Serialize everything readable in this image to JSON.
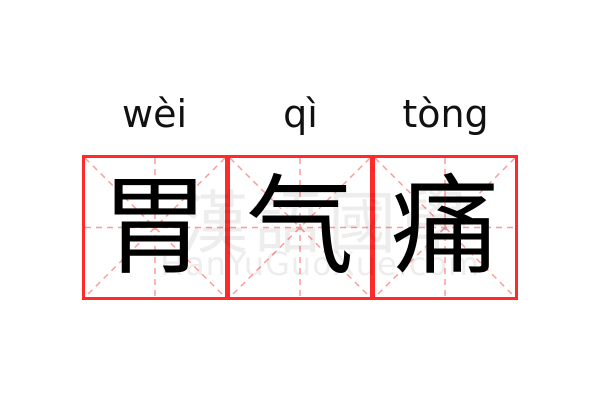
{
  "words": [
    {
      "pinyin": "wèi",
      "char": "胃"
    },
    {
      "pinyin": "qì",
      "char": "气"
    },
    {
      "pinyin": "tòng",
      "char": "痛"
    }
  ],
  "watermark": {
    "title": "漢語國學",
    "site": "HanYuGuoXue.com"
  },
  "colors": {
    "grid_border": "#ff2a2a",
    "guide_lines": "#ff9a9a",
    "text": "#000000"
  }
}
